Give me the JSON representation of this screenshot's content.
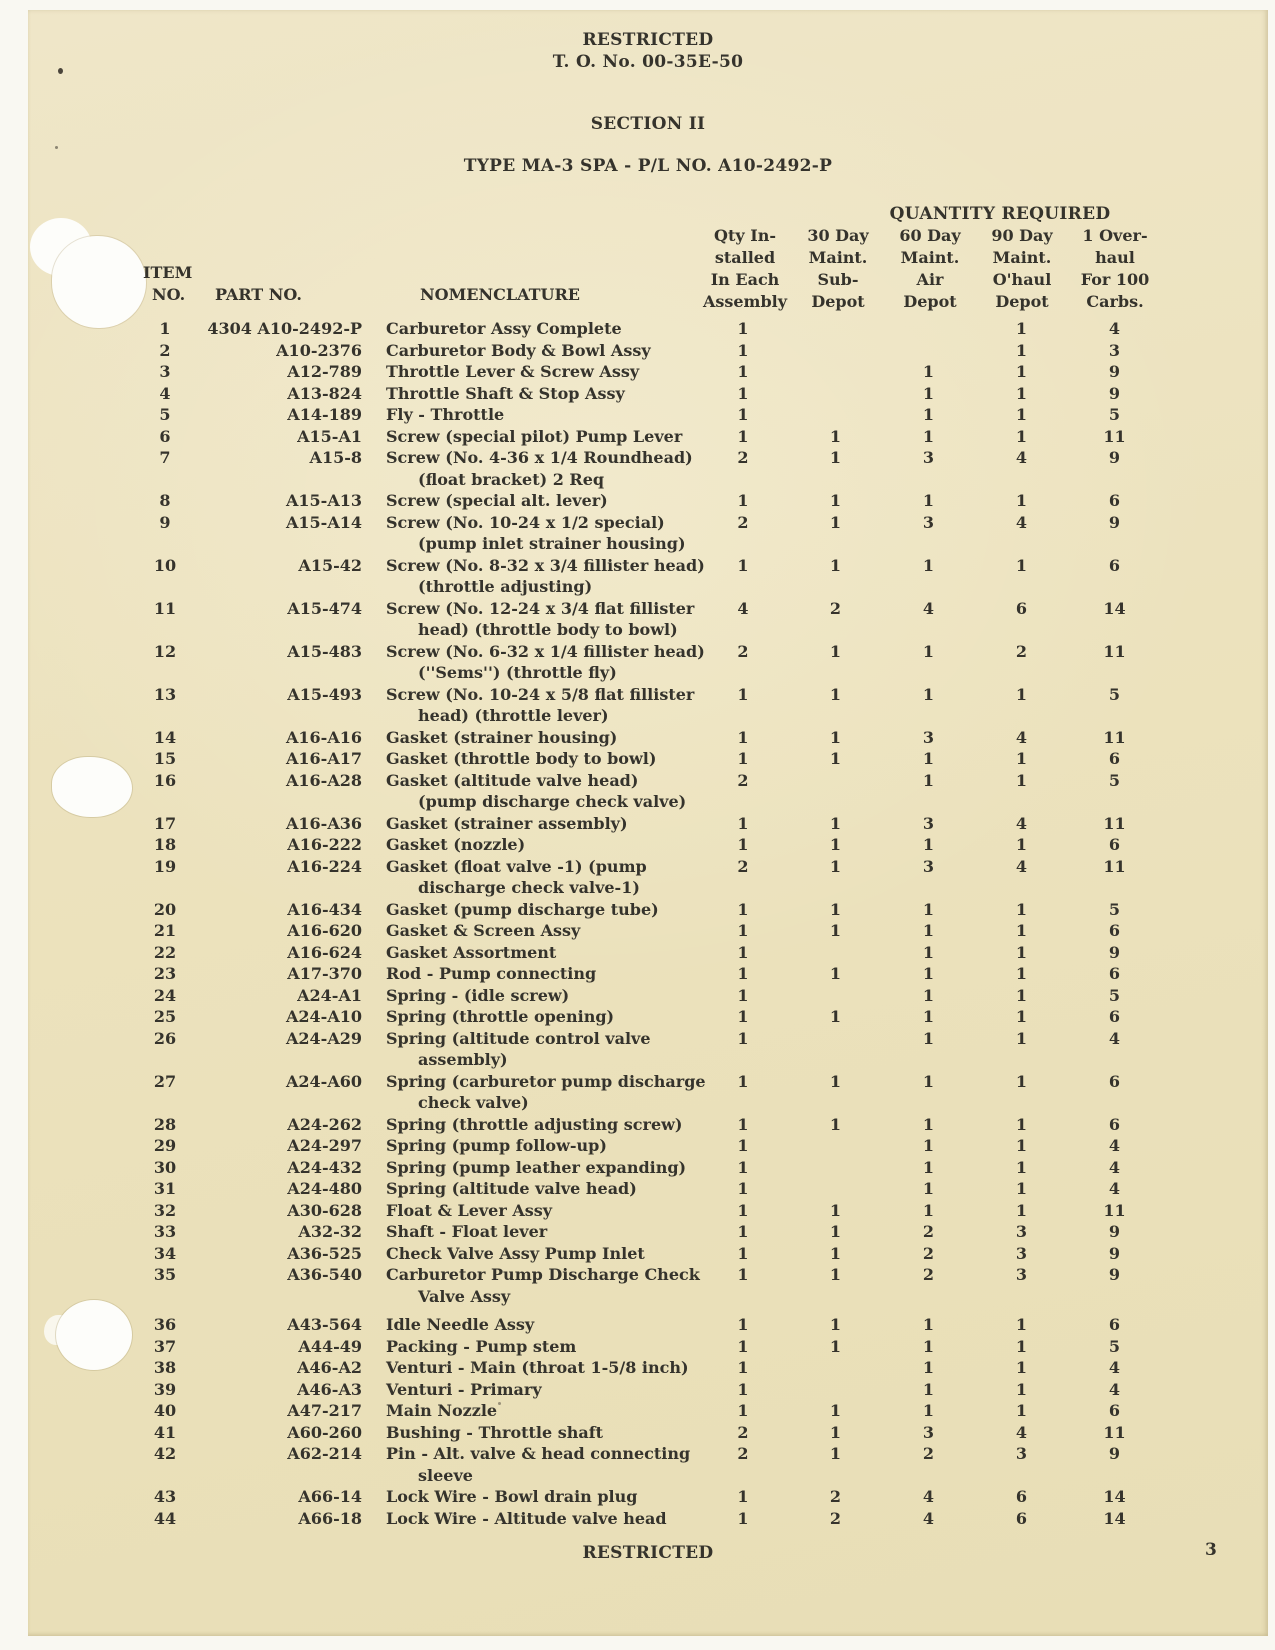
{
  "header": {
    "classification": "RESTRICTED",
    "to_number": "T. O. No. 00-35E-50",
    "section": "SECTION II",
    "title": "TYPE MA-3 SPA - P/L NO. A10-2492-P"
  },
  "table": {
    "group_header": "QUANTITY REQUIRED",
    "columns": {
      "item": [
        "ITEM",
        "NO."
      ],
      "part": "PART NO.",
      "nomenclature": "NOMENCLATURE",
      "qty": [
        [
          "Qty In-",
          "stalled",
          "In Each",
          "Assembly"
        ],
        [
          "30 Day",
          "Maint.",
          "Sub-",
          "Depot"
        ],
        [
          "60 Day",
          "Maint.",
          "Air",
          "Depot"
        ],
        [
          "90 Day",
          "Maint.",
          "O'haul",
          "Depot"
        ],
        [
          "1 Over-",
          "haul",
          "For 100",
          "Carbs."
        ]
      ]
    },
    "rows": [
      {
        "item": "1",
        "part": "4304 A10-2492-P",
        "nom": [
          "Carburetor Assy Complete"
        ],
        "q": [
          "1",
          "",
          "",
          "1",
          "4"
        ]
      },
      {
        "item": "2",
        "part": "A10-2376",
        "nom": [
          "Carburetor Body & Bowl Assy"
        ],
        "q": [
          "1",
          "",
          "",
          "1",
          "3"
        ]
      },
      {
        "item": "3",
        "part": "A12-789",
        "nom": [
          "Throttle Lever & Screw Assy"
        ],
        "q": [
          "1",
          "",
          "1",
          "1",
          "9"
        ]
      },
      {
        "item": "4",
        "part": "A13-824",
        "nom": [
          "Throttle Shaft & Stop Assy"
        ],
        "q": [
          "1",
          "",
          "1",
          "1",
          "9"
        ]
      },
      {
        "item": "5",
        "part": "A14-189",
        "nom": [
          "Fly - Throttle"
        ],
        "q": [
          "1",
          "",
          "1",
          "1",
          "5"
        ]
      },
      {
        "item": "6",
        "part": "A15-A1",
        "nom": [
          "Screw (special pilot) Pump Lever"
        ],
        "q": [
          "1",
          "1",
          "1",
          "1",
          "11"
        ]
      },
      {
        "item": "7",
        "part": "A15-8",
        "nom": [
          "Screw (No. 4-36 x 1/4 Roundhead)",
          "(float bracket) 2 Req"
        ],
        "q": [
          "2",
          "1",
          "3",
          "4",
          "9"
        ]
      },
      {
        "item": "8",
        "part": "A15-A13",
        "nom": [
          "Screw (special alt. lever)"
        ],
        "q": [
          "1",
          "1",
          "1",
          "1",
          "6"
        ]
      },
      {
        "item": "9",
        "part": "A15-A14",
        "nom": [
          "Screw (No. 10-24 x 1/2 special)",
          "(pump inlet strainer housing)"
        ],
        "q": [
          "2",
          "1",
          "3",
          "4",
          "9"
        ]
      },
      {
        "item": "10",
        "part": "A15-42",
        "nom": [
          "Screw (No. 8-32 x 3/4 fillister head)",
          "(throttle adjusting)"
        ],
        "q": [
          "1",
          "1",
          "1",
          "1",
          "6"
        ]
      },
      {
        "item": "11",
        "part": "A15-474",
        "nom": [
          "Screw (No. 12-24 x 3/4 flat fillister",
          "head) (throttle body to bowl)"
        ],
        "q": [
          "4",
          "2",
          "4",
          "6",
          "14"
        ]
      },
      {
        "item": "12",
        "part": "A15-483",
        "nom": [
          "Screw (No. 6-32 x 1/4 fillister head)",
          "(''Sems'') (throttle fly)"
        ],
        "q": [
          "2",
          "1",
          "1",
          "2",
          "11"
        ]
      },
      {
        "item": "13",
        "part": "A15-493",
        "nom": [
          "Screw (No. 10-24 x 5/8 flat fillister",
          "head) (throttle lever)"
        ],
        "q": [
          "1",
          "1",
          "1",
          "1",
          "5"
        ]
      },
      {
        "item": "14",
        "part": "A16-A16",
        "nom": [
          "Gasket (strainer housing)"
        ],
        "q": [
          "1",
          "1",
          "3",
          "4",
          "11"
        ]
      },
      {
        "item": "15",
        "part": "A16-A17",
        "nom": [
          "Gasket (throttle body to bowl)"
        ],
        "q": [
          "1",
          "1",
          "1",
          "1",
          "6"
        ]
      },
      {
        "item": "16",
        "part": "A16-A28",
        "nom": [
          "Gasket (altitude valve head)",
          "(pump discharge check valve)"
        ],
        "q": [
          "2",
          "",
          "1",
          "1",
          "5"
        ]
      },
      {
        "item": "17",
        "part": "A16-A36",
        "nom": [
          "Gasket (strainer assembly)"
        ],
        "q": [
          "1",
          "1",
          "3",
          "4",
          "11"
        ]
      },
      {
        "item": "18",
        "part": "A16-222",
        "nom": [
          "Gasket (nozzle)"
        ],
        "q": [
          "1",
          "1",
          "1",
          "1",
          "6"
        ]
      },
      {
        "item": "19",
        "part": "A16-224",
        "nom": [
          "Gasket (float valve -1) (pump",
          "discharge check valve-1)"
        ],
        "q": [
          "2",
          "1",
          "3",
          "4",
          "11"
        ]
      },
      {
        "item": "20",
        "part": "A16-434",
        "nom": [
          "Gasket (pump discharge tube)"
        ],
        "q": [
          "1",
          "1",
          "1",
          "1",
          "5"
        ]
      },
      {
        "item": "21",
        "part": "A16-620",
        "nom": [
          "Gasket & Screen Assy"
        ],
        "q": [
          "1",
          "1",
          "1",
          "1",
          "6"
        ]
      },
      {
        "item": "22",
        "part": "A16-624",
        "nom": [
          "Gasket Assortment"
        ],
        "q": [
          "1",
          "",
          "1",
          "1",
          "9"
        ]
      },
      {
        "item": "23",
        "part": "A17-370",
        "nom": [
          "Rod - Pump connecting"
        ],
        "q": [
          "1",
          "1",
          "1",
          "1",
          "6"
        ]
      },
      {
        "item": "24",
        "part": "A24-A1",
        "nom": [
          "Spring - (idle screw)"
        ],
        "q": [
          "1",
          "",
          "1",
          "1",
          "5"
        ]
      },
      {
        "item": "25",
        "part": "A24-A10",
        "nom": [
          "Spring (throttle opening)"
        ],
        "q": [
          "1",
          "1",
          "1",
          "1",
          "6"
        ]
      },
      {
        "item": "26",
        "part": "A24-A29",
        "nom": [
          "Spring (altitude control valve",
          "assembly)"
        ],
        "q": [
          "1",
          "",
          "1",
          "1",
          "4"
        ]
      },
      {
        "item": "27",
        "part": "A24-A60",
        "nom": [
          "Spring (carburetor pump discharge",
          "check valve)"
        ],
        "q": [
          "1",
          "1",
          "1",
          "1",
          "6"
        ]
      },
      {
        "item": "28",
        "part": "A24-262",
        "nom": [
          "Spring (throttle adjusting screw)"
        ],
        "q": [
          "1",
          "1",
          "1",
          "1",
          "6"
        ]
      },
      {
        "item": "29",
        "part": "A24-297",
        "nom": [
          "Spring (pump follow-up)"
        ],
        "q": [
          "1",
          "",
          "1",
          "1",
          "4"
        ]
      },
      {
        "item": "30",
        "part": "A24-432",
        "nom": [
          "Spring (pump leather expanding)"
        ],
        "q": [
          "1",
          "",
          "1",
          "1",
          "4"
        ]
      },
      {
        "item": "31",
        "part": "A24-480",
        "nom": [
          "Spring (altitude valve head)"
        ],
        "q": [
          "1",
          "",
          "1",
          "1",
          "4"
        ]
      },
      {
        "item": "32",
        "part": "A30-628",
        "nom": [
          "Float & Lever Assy"
        ],
        "q": [
          "1",
          "1",
          "1",
          "1",
          "11"
        ]
      },
      {
        "item": "33",
        "part": "A32-32",
        "nom": [
          "Shaft - Float lever"
        ],
        "q": [
          "1",
          "1",
          "2",
          "3",
          "9"
        ]
      },
      {
        "item": "34",
        "part": "A36-525",
        "nom": [
          "Check Valve Assy Pump Inlet"
        ],
        "q": [
          "1",
          "1",
          "2",
          "3",
          "9"
        ]
      },
      {
        "item": "35",
        "part": "A36-540",
        "nom": [
          "Carburetor Pump Discharge Check",
          "Valve Assy"
        ],
        "q": [
          "1",
          "1",
          "2",
          "3",
          "9"
        ]
      },
      {
        "item": "36",
        "part": "A43-564",
        "nom": [
          "Idle Needle Assy"
        ],
        "q": [
          "1",
          "1",
          "1",
          "1",
          "6"
        ],
        "gap_before": true
      },
      {
        "item": "37",
        "part": "A44-49",
        "nom": [
          "Packing - Pump stem"
        ],
        "q": [
          "1",
          "1",
          "1",
          "1",
          "5"
        ]
      },
      {
        "item": "38",
        "part": "A46-A2",
        "nom": [
          "Venturi - Main (throat 1-5/8 inch)"
        ],
        "q": [
          "1",
          "",
          "1",
          "1",
          "4"
        ]
      },
      {
        "item": "39",
        "part": "A46-A3",
        "nom": [
          "Venturi - Primary"
        ],
        "q": [
          "1",
          "",
          "1",
          "1",
          "4"
        ]
      },
      {
        "item": "40",
        "part": "A47-217",
        "nom": [
          "Main Nozzle"
        ],
        "q": [
          "1",
          "1",
          "1",
          "1",
          "6"
        ]
      },
      {
        "item": "41",
        "part": "A60-260",
        "nom": [
          "Bushing - Throttle shaft"
        ],
        "q": [
          "2",
          "1",
          "3",
          "4",
          "11"
        ]
      },
      {
        "item": "42",
        "part": "A62-214",
        "nom": [
          "Pin - Alt. valve & head connecting",
          "sleeve"
        ],
        "q": [
          "2",
          "1",
          "2",
          "3",
          "9"
        ]
      },
      {
        "item": "43",
        "part": "A66-14",
        "nom": [
          "Lock Wire - Bowl drain plug"
        ],
        "q": [
          "1",
          "2",
          "4",
          "6",
          "14"
        ]
      },
      {
        "item": "44",
        "part": "A66-18",
        "nom": [
          "Lock Wire - Altitude valve head"
        ],
        "q": [
          "1",
          "2",
          "4",
          "6",
          "14"
        ]
      }
    ]
  },
  "footer": {
    "classification": "RESTRICTED",
    "page_number": "3"
  }
}
